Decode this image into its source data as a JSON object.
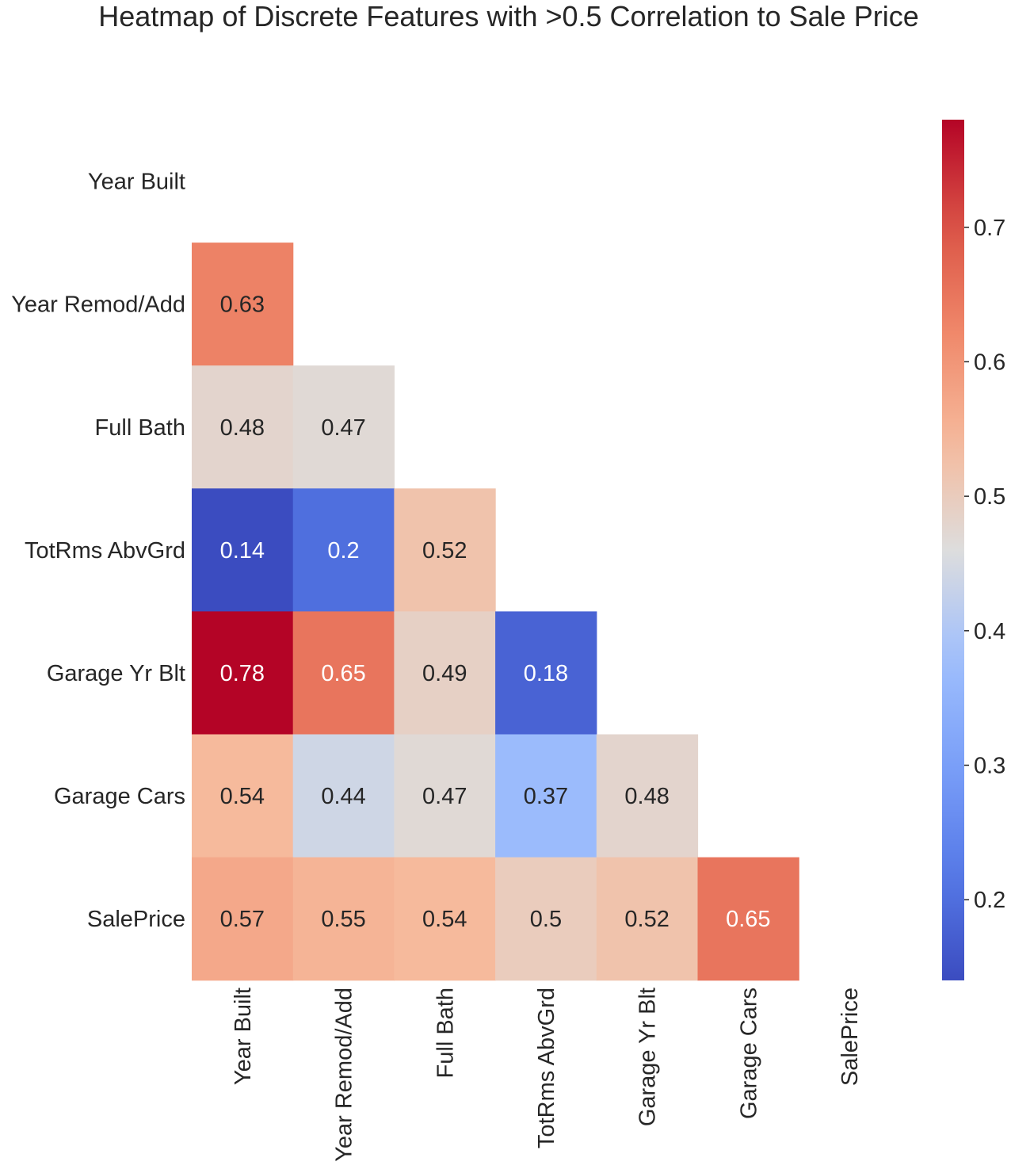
{
  "chart_data": {
    "type": "heatmap",
    "title": "Heatmap of Discrete Features with >0.5 Correlation to Sale Price",
    "xlabel": "",
    "ylabel": "",
    "row_labels": [
      "Year Built",
      "Year Remod/Add",
      "Full Bath",
      "TotRms AbvGrd",
      "Garage Yr Blt",
      "Garage Cars",
      "SalePrice"
    ],
    "col_labels": [
      "Year Built",
      "Year Remod/Add",
      "Full Bath",
      "TotRms AbvGrd",
      "Garage Yr Blt",
      "Garage Cars",
      "SalePrice"
    ],
    "mask": "upper-triangle-including-diagonal",
    "values": [
      [
        null,
        null,
        null,
        null,
        null,
        null,
        null
      ],
      [
        0.63,
        null,
        null,
        null,
        null,
        null,
        null
      ],
      [
        0.48,
        0.47,
        null,
        null,
        null,
        null,
        null
      ],
      [
        0.14,
        0.2,
        0.52,
        null,
        null,
        null,
        null
      ],
      [
        0.78,
        0.65,
        0.49,
        0.18,
        null,
        null,
        null
      ],
      [
        0.54,
        0.44,
        0.47,
        0.37,
        0.48,
        null,
        null
      ],
      [
        0.57,
        0.55,
        0.54,
        0.5,
        0.52,
        0.65,
        null
      ]
    ],
    "colormap": "coolwarm",
    "color_range": [
      0.14,
      0.78
    ],
    "colorbar": {
      "ticks": [
        0.2,
        0.3,
        0.4,
        0.5,
        0.6,
        0.7
      ],
      "tick_labels": [
        "0.2",
        "0.3",
        "0.4",
        "0.5",
        "0.6",
        "0.7"
      ],
      "placement": "right"
    },
    "grid": false
  }
}
